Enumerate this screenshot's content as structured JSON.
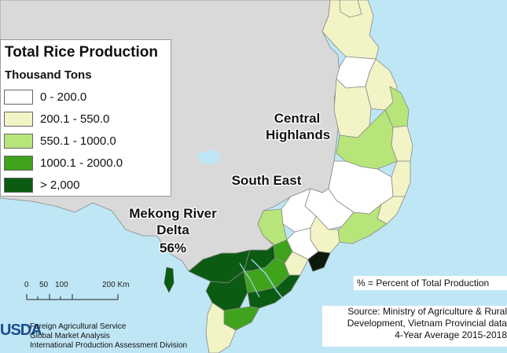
{
  "legend": {
    "title": "Total Rice Production",
    "subtitle": "Thousand Tons",
    "items": [
      {
        "label": "0 - 200.0",
        "color": "#ffffff"
      },
      {
        "label": "200.1 - 550.0",
        "color": "#f2f4c6"
      },
      {
        "label": "550.1 - 1000.0",
        "color": "#b8e57a"
      },
      {
        "label": "1000.1 - 2000.0",
        "color": "#3fa31c"
      },
      {
        "label": "> 2,000",
        "color": "#0b5b12"
      }
    ]
  },
  "regions": {
    "central_highlands": "Central\nHighlands",
    "south_east": "South East",
    "mekong_name": "Mekong River\nDelta",
    "mekong_pct": "56%"
  },
  "percent_note": "% = Percent of Total Production",
  "source": {
    "line1": "Source: Ministry of Agriculture & Rural",
    "line2": "Development, Vietnam Provincial data",
    "line3": "4-Year Average 2015-2018"
  },
  "scale": {
    "ticks": [
      "0",
      "50",
      "100",
      "200 Km"
    ]
  },
  "usda": {
    "logo": "USDA",
    "line1": "Foreign Agricultural Service",
    "line2": "Global Market Analysis",
    "line3": "International Production Assessment Division"
  },
  "colors": {
    "sea": "#bfe6f5",
    "land": "#d9d9d9",
    "border": "#8a8a8a"
  }
}
